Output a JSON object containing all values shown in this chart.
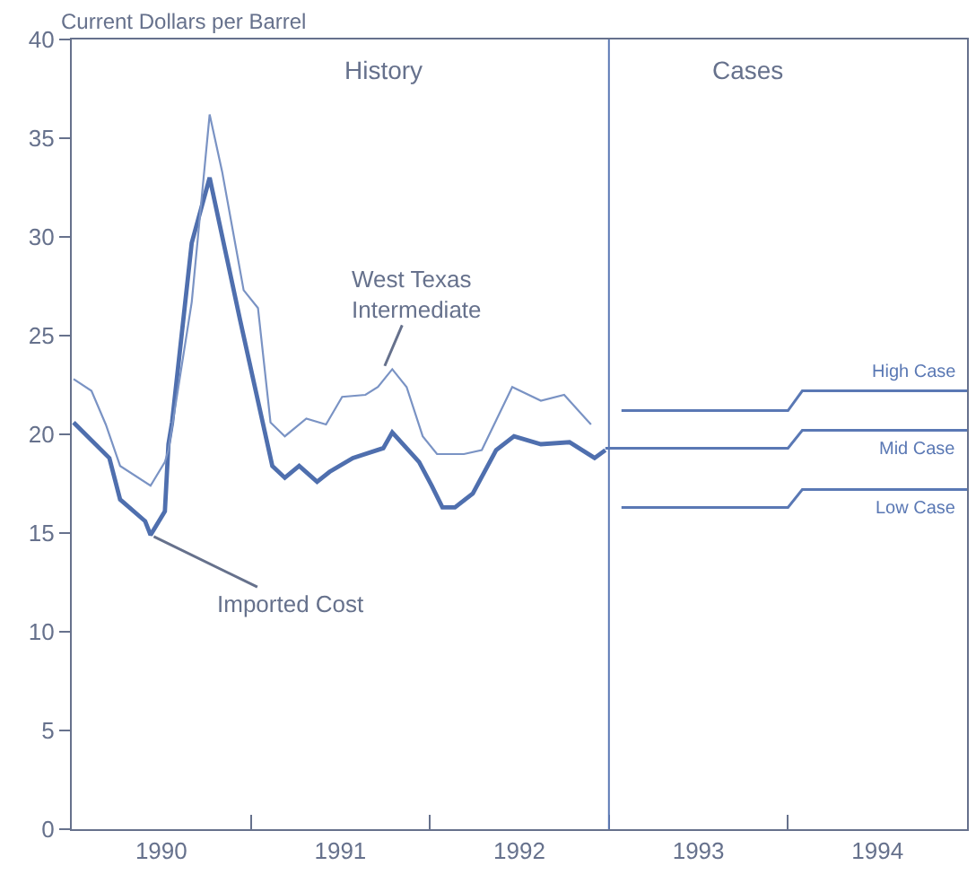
{
  "chart_data": {
    "type": "line",
    "ylabel": "Current Dollars per Barrel",
    "xlim": [
      1990,
      1995
    ],
    "xticks": [
      {
        "value": 1990.5,
        "label": "1990"
      },
      {
        "value": 1991.5,
        "label": "1991"
      },
      {
        "value": 1992.5,
        "label": "1992"
      },
      {
        "value": 1993.5,
        "label": "1993"
      },
      {
        "value": 1994.5,
        "label": "1994"
      },
      {
        "value": 1991,
        "label": null
      },
      {
        "value": 1992,
        "label": null
      },
      {
        "value": 1993,
        "label": null
      },
      {
        "value": 1994,
        "label": null
      }
    ],
    "ylim": [
      0,
      40
    ],
    "yticks": [
      0,
      5,
      10,
      15,
      20,
      25,
      30,
      35,
      40
    ],
    "grid": false,
    "legend": false,
    "marker": "none",
    "line_style": "solid",
    "series": [
      {
        "color": "#4f6fae",
        "x": [
          1990.01,
          1990.21,
          1990.27,
          1990.41,
          1990.44,
          1990.52,
          1990.54,
          1990.56,
          1990.67,
          1990.77,
          1990.94,
          1991.12,
          1991.19,
          1991.27,
          1991.37,
          1991.44,
          1991.57,
          1991.74,
          1991.79,
          1991.94,
          1992.01,
          1992.07,
          1992.14,
          1992.24,
          1992.37,
          1992.47,
          1992.62,
          1992.78,
          1992.92,
          1992.98
        ],
        "values": [
          20.6,
          18.8,
          16.7,
          15.6,
          14.9,
          16.1,
          19.5,
          20.6,
          29.7,
          33.0,
          25.8,
          18.4,
          17.8,
          18.4,
          17.6,
          18.1,
          18.8,
          19.3,
          20.1,
          18.6,
          17.4,
          16.3,
          16.3,
          17.0,
          19.2,
          19.9,
          19.5,
          19.6,
          18.8,
          19.2
        ]
      },
      {
        "color": "#7a93c4",
        "x": [
          1990.01,
          1990.11,
          1990.19,
          1990.27,
          1990.44,
          1990.52,
          1990.54,
          1990.67,
          1990.77,
          1990.84,
          1990.96,
          1991.04,
          1991.11,
          1991.19,
          1991.31,
          1991.42,
          1991.51,
          1991.64,
          1991.71,
          1991.79,
          1991.87,
          1991.96,
          1992.04,
          1992.19,
          1992.29,
          1992.46,
          1992.62,
          1992.75,
          1992.87,
          1992.9
        ],
        "values": [
          22.8,
          22.2,
          20.5,
          18.4,
          17.4,
          18.6,
          19.2,
          26.7,
          36.2,
          33.3,
          27.3,
          26.4,
          20.6,
          19.9,
          20.8,
          20.5,
          21.9,
          22.0,
          22.4,
          23.3,
          22.4,
          19.9,
          19.0,
          19.0,
          19.2,
          22.4,
          21.7,
          22.0,
          20.8,
          20.5
        ]
      },
      {
        "name": "Low Case",
        "color": "#5a78b4",
        "x": [
          1993.07,
          1994.0,
          1994.08,
          1995.0
        ],
        "values": [
          16.3,
          16.3,
          17.2,
          17.2
        ]
      },
      {
        "name": "Mid Case",
        "color": "#5a78b4",
        "x": [
          1992.98,
          1994.0,
          1994.08,
          1995.0
        ],
        "values": [
          19.3,
          19.3,
          20.2,
          20.2
        ]
      },
      {
        "name": "High Case",
        "color": "#5a78b4",
        "x": [
          1993.07,
          1994.0,
          1994.08,
          1995.0
        ],
        "values": [
          21.2,
          21.2,
          22.2,
          22.2
        ]
      }
    ],
    "ref_lines": [
      {
        "axis": "x",
        "value": 1993,
        "color": "#5a78b4"
      }
    ],
    "annotations": [
      {
        "text": "Imported Cost",
        "x": 1990.44,
        "y": 14.9
      },
      {
        "text": "West Texas\nIntermediate",
        "x": 1991.74,
        "y": 23.3
      },
      "History",
      "Cases"
    ]
  }
}
